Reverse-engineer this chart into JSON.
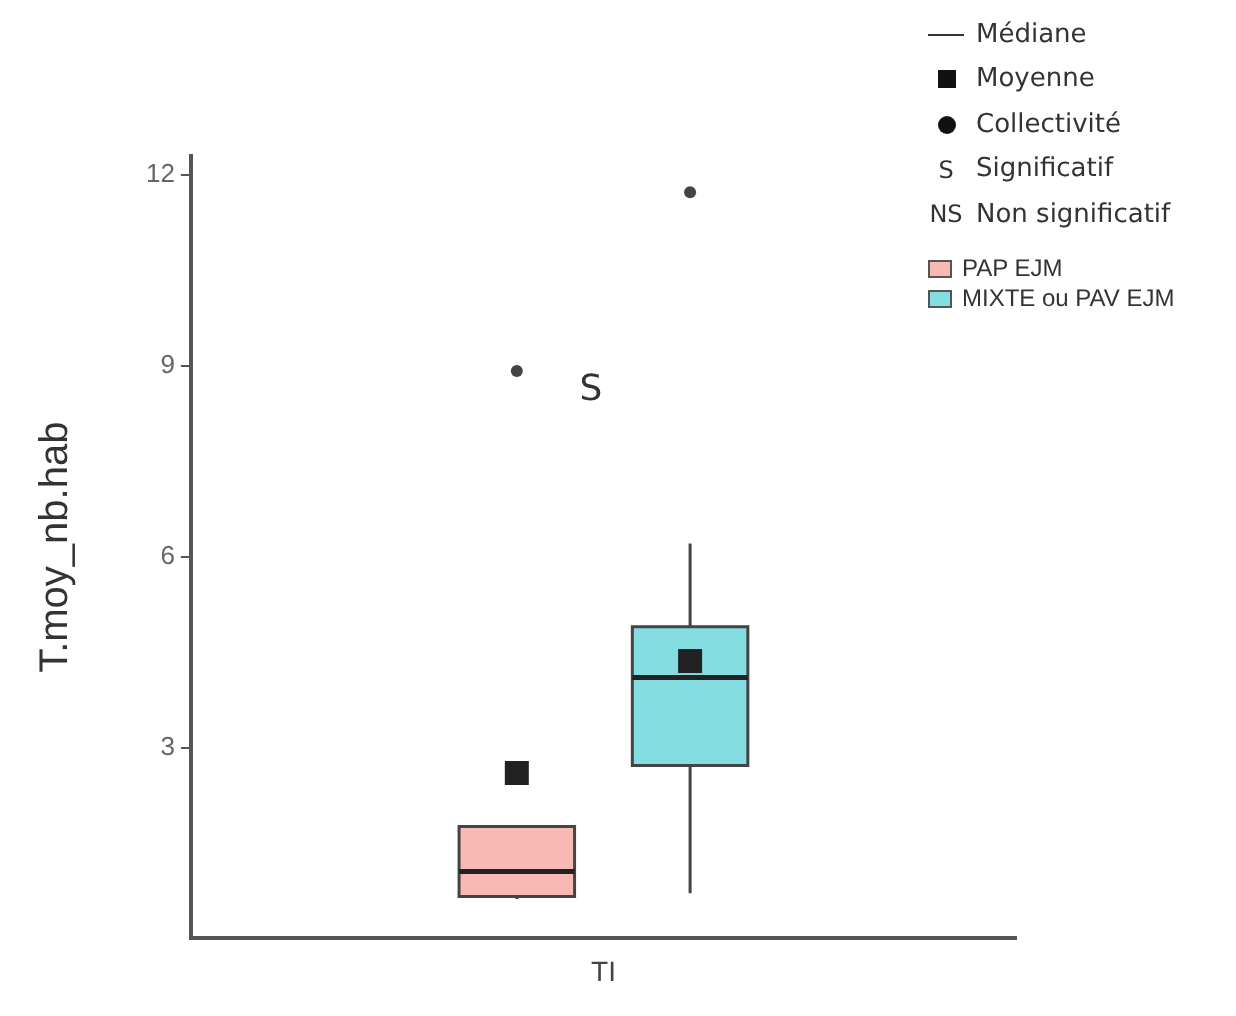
{
  "chart_data": {
    "type": "box",
    "ylabel": "T.moy_nb.hab",
    "categories": [
      "TI"
    ],
    "series": [
      {
        "name": "PAP EJM",
        "color": "#f8b9b5",
        "boxes": [
          {
            "low": 0.62,
            "q1": 0.66,
            "median": 1.05,
            "q3": 1.76,
            "high": 1.76,
            "mean": 2.6,
            "outliers": [
              8.92
            ]
          }
        ]
      },
      {
        "name": "MIXTE ou PAV EJM",
        "color": "#84dde0",
        "boxes": [
          {
            "low": 0.71,
            "q1": 2.72,
            "median": 4.1,
            "q3": 4.9,
            "high": 6.21,
            "mean": 4.36,
            "outliers": [
              11.73
            ]
          }
        ]
      }
    ],
    "ylim": [
      0,
      12.3
    ],
    "yticks": [
      3,
      6,
      9,
      12
    ],
    "grid": false,
    "legend": "top right",
    "annotations": [
      "S",
      "Médiane",
      "Moyenne",
      "Collectivité",
      "S",
      "Significatif",
      "NS",
      "Non significatif"
    ]
  }
}
